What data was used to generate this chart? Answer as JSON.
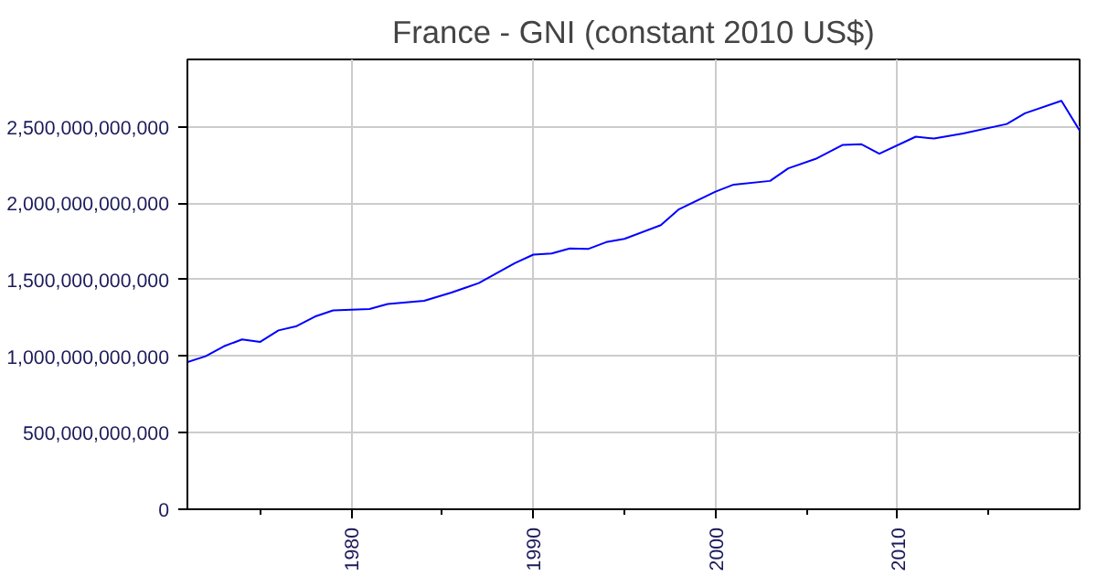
{
  "chart_data": {
    "type": "line",
    "title": "France - GNI (constant 2010 US$)",
    "x": [
      1971,
      1972,
      1973,
      1974,
      1975,
      1976,
      1977,
      1978,
      1979,
      1981,
      1982,
      1984,
      1985.5,
      1987,
      1989,
      1990,
      1991,
      1992,
      1993,
      1994,
      1995,
      1997,
      1998,
      2000,
      2001,
      2003,
      2004,
      2005.5,
      2007,
      2008,
      2009,
      2011,
      2012,
      2013.6,
      2016,
      2017,
      2019,
      2020
    ],
    "series": [
      {
        "color": "#0000ff",
        "values": [
          962000000000,
          1000000000000,
          1065000000000,
          1110000000000,
          1094000000000,
          1169000000000,
          1197000000000,
          1259000000000,
          1300000000000,
          1309000000000,
          1342000000000,
          1362000000000,
          1416000000000,
          1478000000000,
          1610000000000,
          1664000000000,
          1672000000000,
          1705000000000,
          1701000000000,
          1746000000000,
          1767000000000,
          1857000000000,
          1961000000000,
          2076000000000,
          2122000000000,
          2146000000000,
          2228000000000,
          2290000000000,
          2382000000000,
          2386000000000,
          2324000000000,
          2435000000000,
          2423000000000,
          2456000000000,
          2518000000000,
          2588000000000,
          2670000000000,
          2476000000000
        ]
      }
    ],
    "xlim": [
      1971,
      2020
    ],
    "xticks": [
      {
        "value": 1975,
        "label": null
      },
      1980,
      {
        "value": 1985,
        "label": null
      },
      1990,
      {
        "value": 1995,
        "label": null
      },
      2000,
      {
        "value": 2005,
        "label": null
      },
      2010,
      {
        "value": 2015,
        "label": null
      }
    ],
    "ylim": [
      0,
      2940000000000
    ],
    "yticks": [
      {
        "value": 0,
        "label": "0"
      },
      {
        "value": 500000000000,
        "label": "500,000,000,000"
      },
      {
        "value": 1000000000000,
        "label": "1,000,000,000,000"
      },
      {
        "value": 1500000000000,
        "label": "1,500,000,000,000"
      },
      {
        "value": 2000000000000,
        "label": "2,000,000,000,000"
      },
      {
        "value": 2500000000000,
        "label": "2,500,000,000,000"
      }
    ],
    "grid": true,
    "line_style": "solid"
  }
}
